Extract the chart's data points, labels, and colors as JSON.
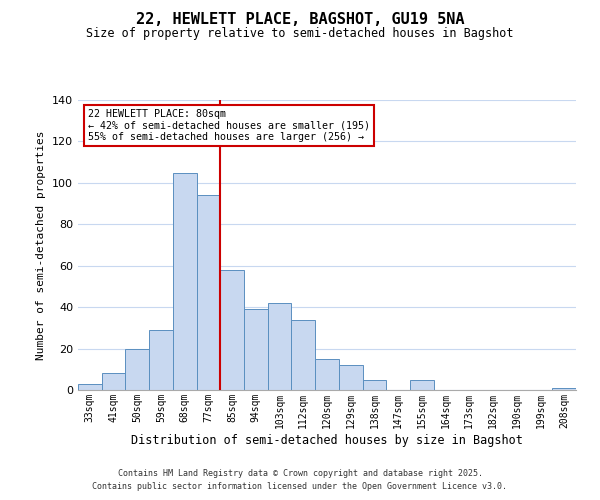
{
  "title": "22, HEWLETT PLACE, BAGSHOT, GU19 5NA",
  "subtitle": "Size of property relative to semi-detached houses in Bagshot",
  "xlabel": "Distribution of semi-detached houses by size in Bagshot",
  "ylabel": "Number of semi-detached properties",
  "bar_labels": [
    "33sqm",
    "41sqm",
    "50sqm",
    "59sqm",
    "68sqm",
    "77sqm",
    "85sqm",
    "94sqm",
    "103sqm",
    "112sqm",
    "120sqm",
    "129sqm",
    "138sqm",
    "147sqm",
    "155sqm",
    "164sqm",
    "173sqm",
    "182sqm",
    "190sqm",
    "199sqm",
    "208sqm"
  ],
  "bar_values": [
    3,
    8,
    20,
    29,
    105,
    94,
    58,
    39,
    42,
    34,
    15,
    12,
    5,
    0,
    5,
    0,
    0,
    0,
    0,
    0,
    1
  ],
  "bar_color": "#c8d8f0",
  "bar_edge_color": "#5a8fc0",
  "vline_x": 5.5,
  "vline_color": "#cc0000",
  "ylim": [
    0,
    140
  ],
  "yticks": [
    0,
    20,
    40,
    60,
    80,
    100,
    120,
    140
  ],
  "annotation_title": "22 HEWLETT PLACE: 80sqm",
  "annotation_line1": "← 42% of semi-detached houses are smaller (195)",
  "annotation_line2": "55% of semi-detached houses are larger (256) →",
  "annotation_box_color": "#ffffff",
  "annotation_box_edge": "#cc0000",
  "footer1": "Contains HM Land Registry data © Crown copyright and database right 2025.",
  "footer2": "Contains public sector information licensed under the Open Government Licence v3.0.",
  "background_color": "#ffffff",
  "grid_color": "#c8d8f0"
}
